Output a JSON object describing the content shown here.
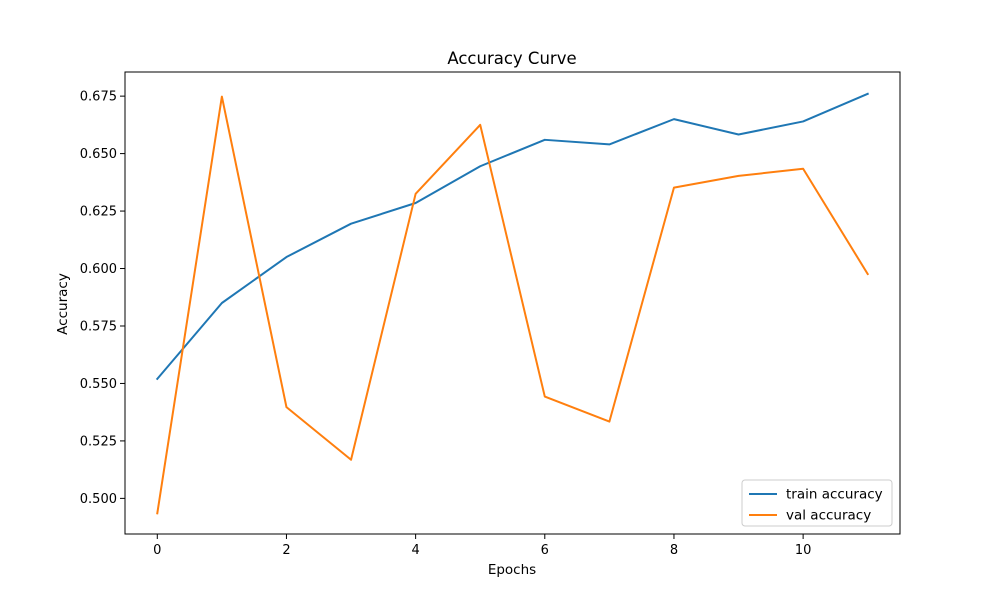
{
  "chart_data": {
    "type": "line",
    "title": "Accuracy Curve",
    "xlabel": "Epochs",
    "ylabel": "Accuracy",
    "x": [
      0,
      1,
      2,
      3,
      4,
      5,
      6,
      7,
      8,
      9,
      10,
      11
    ],
    "xlim": [
      -0.5,
      11.5
    ],
    "ylim": [
      0.4845,
      0.6855
    ],
    "xticks": [
      0,
      2,
      4,
      6,
      8,
      10
    ],
    "xtick_labels": [
      "0",
      "2",
      "4",
      "6",
      "8",
      "10"
    ],
    "yticks": [
      0.5,
      0.525,
      0.55,
      0.575,
      0.6,
      0.625,
      0.65,
      0.675
    ],
    "ytick_labels": [
      "0.500",
      "0.525",
      "0.550",
      "0.575",
      "0.600",
      "0.625",
      "0.650",
      "0.675"
    ],
    "grid": false,
    "legend_position": "bottom-right",
    "series": [
      {
        "name": "train accuracy",
        "color": "#1f77b4",
        "values": [
          0.552,
          0.585,
          0.605,
          0.6195,
          0.6285,
          0.6445,
          0.656,
          0.654,
          0.665,
          0.6583,
          0.664,
          0.676
        ]
      },
      {
        "name": "val accuracy",
        "color": "#ff7f0e",
        "values": [
          0.4935,
          0.6748,
          0.5397,
          0.5168,
          0.6325,
          0.6625,
          0.5443,
          0.5334,
          0.6352,
          0.6403,
          0.6434,
          0.5976
        ]
      }
    ]
  }
}
